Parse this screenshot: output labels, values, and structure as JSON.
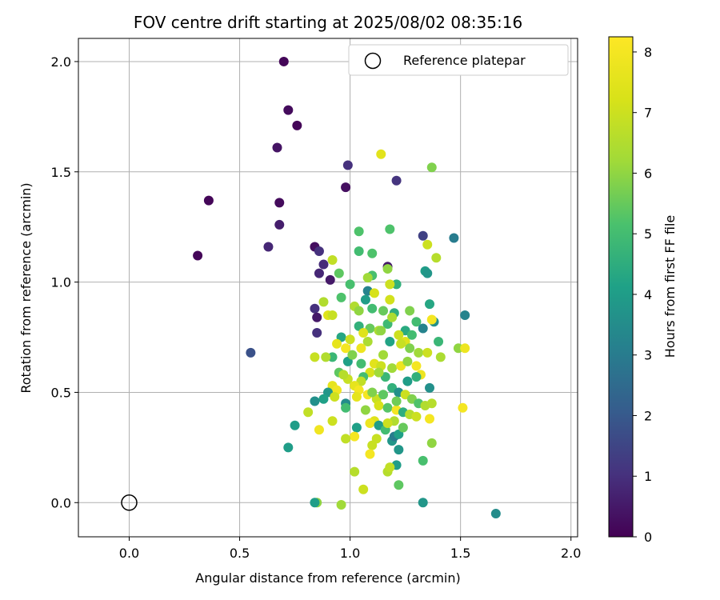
{
  "chart_data": {
    "type": "scatter",
    "title": "FOV centre drift starting at 2025/08/02 08:35:16",
    "xlabel": "Angular distance from reference (arcmin)",
    "ylabel": "Rotation from reference (arcmin)",
    "xlim": [
      -0.23,
      2.03
    ],
    "ylim": [
      -0.155,
      2.105
    ],
    "xticks": [
      0.0,
      0.5,
      1.0,
      1.5,
      2.0
    ],
    "xtick_labels": [
      "0.0",
      "0.5",
      "1.0",
      "1.5",
      "2.0"
    ],
    "yticks": [
      0.0,
      0.5,
      1.0,
      1.5,
      2.0
    ],
    "ytick_labels": [
      "0.0",
      "0.5",
      "1.0",
      "1.5",
      "2.0"
    ],
    "grid": true,
    "colormap": "viridis",
    "colorbar": {
      "label": "Hours from first FF file",
      "range": [
        0,
        8.25
      ],
      "ticks": [
        0,
        1,
        2,
        3,
        4,
        5,
        6,
        7,
        8
      ],
      "tick_labels": [
        "0",
        "1",
        "2",
        "3",
        "4",
        "5",
        "6",
        "7",
        "8"
      ]
    },
    "legend": {
      "label": "Reference platepar",
      "position": "top-right"
    },
    "reference_point": {
      "x": 0.0,
      "y": 0.0
    },
    "points": [
      [
        0.7,
        2.0,
        0.1
      ],
      [
        0.72,
        1.78,
        0.2
      ],
      [
        0.76,
        1.71,
        0.1
      ],
      [
        0.67,
        1.61,
        0.4
      ],
      [
        0.99,
        1.53,
        1.0
      ],
      [
        1.21,
        1.46,
        1.1
      ],
      [
        0.36,
        1.37,
        0.1
      ],
      [
        0.68,
        1.36,
        0.2
      ],
      [
        0.98,
        1.43,
        0.3
      ],
      [
        0.31,
        1.12,
        0.1
      ],
      [
        0.68,
        1.26,
        0.6
      ],
      [
        0.63,
        1.16,
        0.8
      ],
      [
        0.84,
        1.16,
        0.3
      ],
      [
        0.86,
        1.14,
        1.0
      ],
      [
        0.88,
        1.08,
        0.9
      ],
      [
        0.86,
        1.04,
        0.8
      ],
      [
        0.91,
        1.01,
        0.5
      ],
      [
        1.17,
        1.07,
        0.5
      ],
      [
        1.33,
        1.21,
        1.4
      ],
      [
        1.47,
        1.2,
        3.0
      ],
      [
        0.84,
        0.88,
        1.0
      ],
      [
        0.85,
        0.84,
        0.5
      ],
      [
        0.85,
        0.77,
        1.0
      ],
      [
        0.55,
        0.68,
        1.8
      ],
      [
        1.14,
        1.58,
        7.5
      ],
      [
        1.37,
        1.52,
        5.8
      ],
      [
        1.18,
        1.24,
        5.2
      ],
      [
        1.04,
        1.23,
        5.2
      ],
      [
        1.35,
        1.17,
        7.0
      ],
      [
        1.39,
        1.11,
        6.6
      ],
      [
        1.04,
        1.14,
        5.0
      ],
      [
        1.1,
        1.13,
        5.2
      ],
      [
        1.17,
        1.06,
        6.0
      ],
      [
        1.1,
        1.03,
        5.1
      ],
      [
        1.08,
        1.02,
        6.2
      ],
      [
        1.21,
        0.99,
        4.6
      ],
      [
        1.18,
        0.99,
        7.0
      ],
      [
        1.0,
        0.99,
        5.1
      ],
      [
        0.95,
        1.04,
        5.4
      ],
      [
        0.92,
        1.1,
        6.8
      ],
      [
        1.34,
        1.05,
        4.0
      ],
      [
        1.35,
        1.04,
        3.8
      ],
      [
        1.08,
        0.96,
        3.2
      ],
      [
        1.11,
        0.95,
        7.2
      ],
      [
        1.07,
        0.92,
        4.0
      ],
      [
        1.18,
        0.92,
        7.1
      ],
      [
        1.02,
        0.89,
        6.5
      ],
      [
        1.04,
        0.87,
        6.0
      ],
      [
        1.1,
        0.88,
        5.0
      ],
      [
        1.15,
        0.87,
        5.5
      ],
      [
        1.2,
        0.86,
        4.5
      ],
      [
        1.27,
        0.87,
        5.8
      ],
      [
        1.36,
        0.9,
        4.3
      ],
      [
        1.3,
        0.82,
        5.0
      ],
      [
        1.38,
        0.82,
        3.6
      ],
      [
        1.33,
        0.79,
        3.2
      ],
      [
        1.25,
        0.78,
        4.4
      ],
      [
        0.88,
        0.91,
        6.5
      ],
      [
        0.96,
        0.93,
        5.2
      ],
      [
        0.9,
        0.85,
        7.4
      ],
      [
        0.92,
        0.85,
        6.9
      ],
      [
        1.04,
        0.8,
        4.6
      ],
      [
        1.09,
        0.79,
        5.5
      ],
      [
        1.13,
        0.78,
        6.4
      ],
      [
        1.17,
        0.81,
        4.9
      ],
      [
        1.22,
        0.76,
        7.0
      ],
      [
        1.25,
        0.73,
        7.4
      ],
      [
        1.18,
        0.73,
        4.2
      ],
      [
        1.23,
        0.72,
        6.9
      ],
      [
        1.27,
        0.7,
        5.8
      ],
      [
        1.31,
        0.68,
        6.2
      ],
      [
        1.35,
        0.68,
        7.0
      ],
      [
        1.4,
        0.73,
        4.8
      ],
      [
        1.41,
        0.66,
        6.4
      ],
      [
        1.37,
        0.83,
        8.0
      ],
      [
        1.49,
        0.7,
        6.0
      ],
      [
        1.52,
        0.7,
        7.8
      ],
      [
        1.52,
        0.85,
        3.2
      ],
      [
        0.96,
        0.75,
        4.3
      ],
      [
        1.0,
        0.74,
        7.0
      ],
      [
        1.08,
        0.73,
        6.4
      ],
      [
        1.05,
        0.7,
        7.8
      ],
      [
        0.98,
        0.7,
        8.0
      ],
      [
        0.94,
        0.72,
        7.6
      ],
      [
        0.92,
        0.66,
        4.8
      ],
      [
        0.89,
        0.66,
        6.5
      ],
      [
        0.84,
        0.66,
        6.9
      ],
      [
        0.99,
        0.64,
        4.1
      ],
      [
        1.11,
        0.63,
        7.5
      ],
      [
        1.14,
        0.62,
        7.0
      ],
      [
        1.19,
        0.61,
        6.2
      ],
      [
        1.23,
        0.62,
        7.8
      ],
      [
        1.26,
        0.64,
        6.0
      ],
      [
        1.3,
        0.62,
        8.0
      ],
      [
        1.32,
        0.58,
        7.8
      ],
      [
        1.3,
        0.57,
        4.6
      ],
      [
        1.16,
        0.57,
        4.8
      ],
      [
        1.09,
        0.59,
        7.2
      ],
      [
        1.13,
        0.59,
        6.2
      ],
      [
        1.06,
        0.57,
        5.0
      ],
      [
        0.95,
        0.59,
        5.4
      ],
      [
        0.99,
        0.56,
        6.9
      ],
      [
        1.05,
        0.55,
        6.8
      ],
      [
        1.02,
        0.53,
        7.6
      ],
      [
        1.04,
        0.51,
        8.0
      ],
      [
        1.08,
        0.49,
        8.0
      ],
      [
        1.03,
        0.48,
        7.6
      ],
      [
        1.12,
        0.47,
        6.9
      ],
      [
        1.15,
        0.49,
        5.4
      ],
      [
        1.19,
        0.52,
        4.6
      ],
      [
        1.22,
        0.5,
        3.6
      ],
      [
        1.25,
        0.49,
        7.0
      ],
      [
        1.28,
        0.47,
        5.8
      ],
      [
        1.31,
        0.45,
        5.2
      ],
      [
        1.34,
        0.44,
        6.5
      ],
      [
        1.37,
        0.45,
        6.6
      ],
      [
        1.36,
        0.52,
        3.6
      ],
      [
        0.92,
        0.53,
        7.6
      ],
      [
        0.94,
        0.51,
        7.9
      ],
      [
        0.9,
        0.5,
        3.8
      ],
      [
        0.88,
        0.47,
        4.1
      ],
      [
        0.93,
        0.48,
        7.0
      ],
      [
        0.84,
        0.46,
        3.6
      ],
      [
        0.81,
        0.41,
        6.8
      ],
      [
        0.98,
        0.45,
        3.5
      ],
      [
        0.98,
        0.43,
        5.0
      ],
      [
        1.07,
        0.42,
        6.0
      ],
      [
        1.13,
        0.44,
        7.2
      ],
      [
        1.17,
        0.43,
        5.3
      ],
      [
        1.21,
        0.42,
        8.0
      ],
      [
        1.24,
        0.41,
        4.5
      ],
      [
        1.27,
        0.4,
        6.6
      ],
      [
        1.3,
        0.39,
        7.0
      ],
      [
        1.36,
        0.38,
        8.0
      ],
      [
        1.51,
        0.43,
        8.0
      ],
      [
        1.11,
        0.37,
        7.4
      ],
      [
        1.09,
        0.36,
        7.8
      ],
      [
        1.13,
        0.35,
        4.0
      ],
      [
        1.16,
        0.33,
        5.0
      ],
      [
        1.19,
        0.28,
        3.8
      ],
      [
        1.2,
        0.3,
        3.0
      ],
      [
        1.22,
        0.31,
        4.1
      ],
      [
        1.24,
        0.34,
        5.5
      ],
      [
        1.2,
        0.37,
        6.5
      ],
      [
        1.17,
        0.36,
        7.0
      ],
      [
        1.03,
        0.34,
        4.1
      ],
      [
        1.02,
        0.3,
        8.0
      ],
      [
        0.92,
        0.37,
        7.0
      ],
      [
        0.86,
        0.33,
        7.9
      ],
      [
        0.75,
        0.35,
        4.0
      ],
      [
        0.72,
        0.25,
        4.0
      ],
      [
        0.98,
        0.29,
        6.8
      ],
      [
        1.12,
        0.29,
        6.9
      ],
      [
        1.1,
        0.26,
        6.9
      ],
      [
        1.09,
        0.22,
        8.0
      ],
      [
        1.22,
        0.24,
        3.8
      ],
      [
        1.37,
        0.27,
        6.0
      ],
      [
        1.33,
        0.19,
        5.1
      ],
      [
        1.21,
        0.17,
        4.0
      ],
      [
        1.17,
        0.14,
        6.6
      ],
      [
        1.02,
        0.14,
        6.6
      ],
      [
        1.18,
        0.16,
        6.8
      ],
      [
        1.22,
        0.08,
        5.4
      ],
      [
        1.06,
        0.06,
        7.0
      ],
      [
        0.85,
        0.0,
        6.0
      ],
      [
        0.84,
        0.0,
        4.0
      ],
      [
        0.96,
        -0.01,
        6.2
      ],
      [
        1.33,
        0.0,
        3.8
      ],
      [
        1.66,
        -0.05,
        3.5
      ],
      [
        1.1,
        0.5,
        5.8
      ],
      [
        1.15,
        0.67,
        6.2
      ],
      [
        1.05,
        0.63,
        5.0
      ],
      [
        1.26,
        0.55,
        4.0
      ],
      [
        0.97,
        0.58,
        6.6
      ],
      [
        1.28,
        0.76,
        5.0
      ],
      [
        1.14,
        0.78,
        6.0
      ],
      [
        1.06,
        0.77,
        7.4
      ],
      [
        1.01,
        0.67,
        5.8
      ],
      [
        1.19,
        0.84,
        6.4
      ],
      [
        1.21,
        0.46,
        5.6
      ]
    ]
  }
}
